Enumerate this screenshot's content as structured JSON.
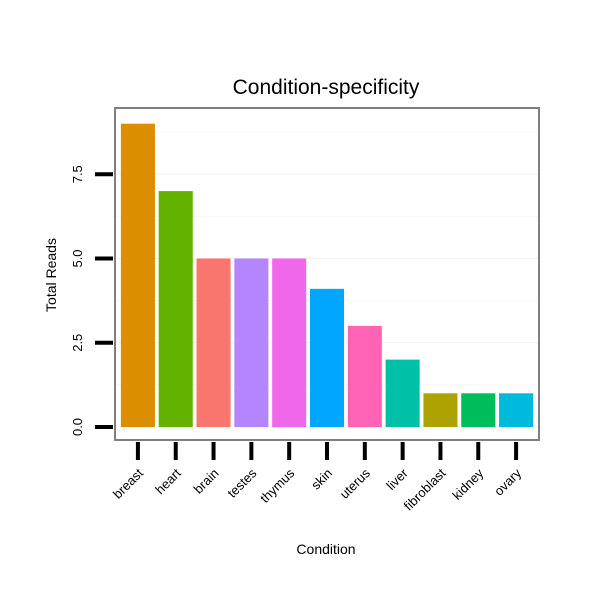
{
  "chart_data": {
    "type": "bar",
    "title": "Condition-specificity",
    "xlabel": "Condition",
    "ylabel": "Total Reads",
    "ylim": [
      0,
      9.2
    ],
    "yticks": [
      0,
      2.5,
      5,
      7.5
    ],
    "ytick_labels": [
      "0.0",
      "2.5",
      "5.0",
      "7.5"
    ],
    "grid": true,
    "legend": "none",
    "categories": [
      "breast",
      "heart",
      "brain",
      "testes",
      "thymus",
      "skin",
      "uterus",
      "liver",
      "fibroblast",
      "kidney",
      "ovary"
    ],
    "values": [
      9,
      7,
      5,
      5,
      5,
      4.1,
      3,
      2,
      1,
      1,
      1
    ],
    "colors": [
      "#DB8E00",
      "#64B200",
      "#F8766D",
      "#B385FF",
      "#EF67EB",
      "#00A6FF",
      "#FF63B6",
      "#00C1A7",
      "#AEA200",
      "#00BD5C",
      "#00BADE"
    ]
  }
}
